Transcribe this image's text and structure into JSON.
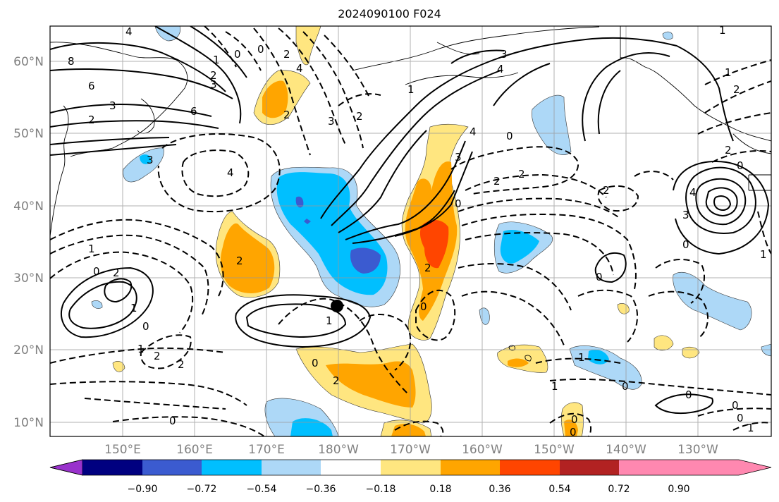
{
  "title": "2024090100 F024",
  "x_axis": {
    "tick_labels": [
      "150°E",
      "160°E",
      "170°E",
      "180°W",
      "170°W",
      "160°W",
      "150°W",
      "140°W",
      "130°W"
    ]
  },
  "y_axis": {
    "tick_labels": [
      "10°N",
      "20°N",
      "30°N",
      "40°N",
      "50°N",
      "60°N"
    ]
  },
  "colorbar": {
    "tick_labels": [
      "−0.90",
      "−0.72",
      "−0.54",
      "−0.36",
      "−0.18",
      "0.18",
      "0.36",
      "0.54",
      "0.72",
      "0.90"
    ],
    "colors": [
      "#9932CC",
      "#000080",
      "#3B5BD0",
      "#00BFFF",
      "#ADD8F7",
      "#FFFFFF",
      "#FFE680",
      "#FFA500",
      "#FF4500",
      "#B22222",
      "#FF88B0"
    ],
    "extend": "both"
  },
  "map": {
    "projection": "equirectangular",
    "lon_range": "140°E to 120°W",
    "lat_range": "8°N to 65°N",
    "gridlines": true,
    "coastlines": true,
    "shading_colors": {
      "light_blue": "#ADD8F7",
      "blue": "#00BFFF",
      "dark_blue": "#3B5BD0",
      "navy": "#000080",
      "light_yellow": "#FFE680",
      "orange": "#FFA500",
      "red_orange": "#FF4500"
    },
    "contour_labels": [
      "4",
      "8",
      "6",
      "3",
      "2",
      "2",
      "6",
      "1",
      "0",
      "2",
      "0",
      "4",
      "2",
      "3",
      "4",
      "3",
      "3",
      "2",
      "1",
      "0",
      "4",
      "4",
      "3",
      "3",
      "0",
      "2",
      "2",
      "2",
      "2",
      "0",
      "1",
      "2",
      "1",
      "0",
      "2",
      "0",
      "1",
      "1",
      "2",
      "0",
      "0",
      "2",
      "1",
      "2",
      "0",
      "2",
      "3",
      "4",
      "1",
      "0",
      "1",
      "0",
      "0",
      "0",
      "1",
      "0",
      "1",
      "0",
      "0",
      "2",
      "0",
      "1"
    ],
    "marker": "filled-circle"
  }
}
